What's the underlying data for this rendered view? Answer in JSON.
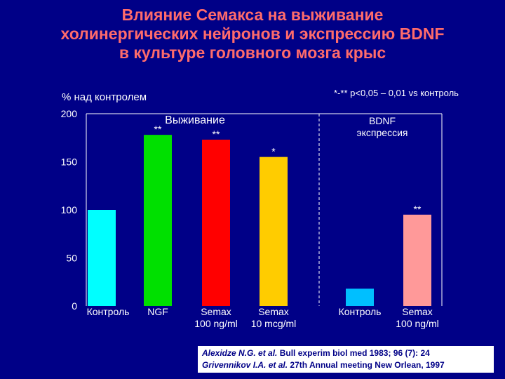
{
  "title": {
    "line1": "Влияние Семакса на выживание",
    "line2": "холинергических нейронов и экспрессию BDNF",
    "line3": "в культуре головного мозга крыс"
  },
  "significance_note": "*-** p<0,05 – 0,01 vs контроль",
  "chart_data": {
    "type": "bar",
    "ylabel": "% над контролем",
    "ylim": [
      0,
      200
    ],
    "yticks": [
      0,
      50,
      100,
      150,
      200
    ],
    "groups": [
      {
        "label": "Выживание",
        "bars": [
          {
            "category": "Контроль",
            "value": 100,
            "color": "#00ffff",
            "mark": ""
          },
          {
            "category": "NGF",
            "value": 178,
            "color": "#00e000",
            "mark": "**"
          },
          {
            "category": "Semax\n100 ng/ml",
            "value": 173,
            "color": "#ff0000",
            "mark": "**"
          },
          {
            "category": "Semax\n10 mcg/ml",
            "value": 155,
            "color": "#ffcc00",
            "mark": "*"
          }
        ]
      },
      {
        "label": "BDNF\nэкспрессия",
        "bars": [
          {
            "category": "Контроль",
            "value": 18,
            "color": "#00bfff",
            "mark": ""
          },
          {
            "category": "Semax\n100 ng/ml",
            "value": 95,
            "color": "#ff9999",
            "mark": "**"
          }
        ]
      }
    ]
  },
  "references": {
    "ref1_authors": "Alexidze N.G. et al.",
    "ref1_source": "Bull experim biol med 1983; 96 (7): 24",
    "ref2_authors": "Grivennikov I.A. et al.",
    "ref2_source": "27th Annual meeting New Orlean, 1997"
  }
}
